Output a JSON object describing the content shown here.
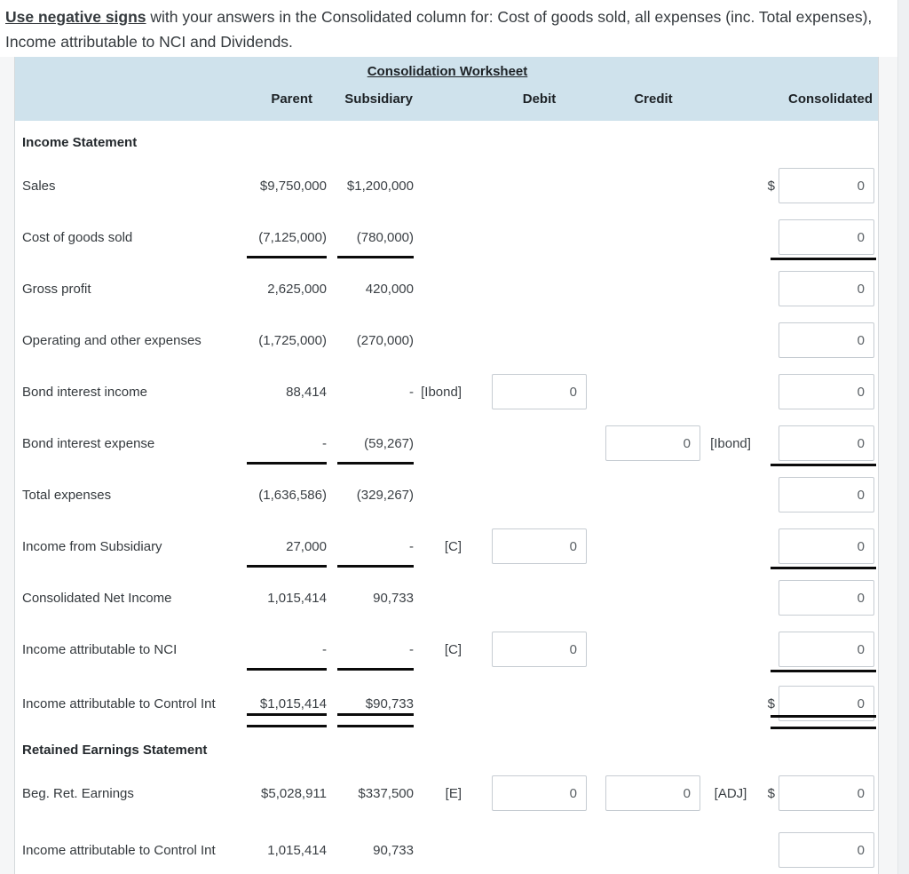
{
  "instruction": {
    "bold": "Use negative signs",
    "rest": " with your answers in the Consolidated column for: Cost of goods sold, all expenses (inc. Total expenses), Income attributable to NCI and Dividends."
  },
  "worksheet": {
    "title": "Consolidation Worksheet",
    "columns": {
      "parent": "Parent",
      "subsidiary": "Subsidiary",
      "debit": "Debit",
      "credit": "Credit",
      "consolidated": "Consolidated"
    },
    "rows": [
      {
        "type": "section",
        "label": "Income Statement"
      },
      {
        "type": "data",
        "label": "Sales",
        "parent": "$9,750,000",
        "subsidiary": "$1,200,000",
        "dollar": "$",
        "consolidated": "0"
      },
      {
        "type": "data",
        "label": "Cost of goods sold",
        "parent": "(7,125,000)",
        "subsidiary": "(780,000)",
        "parent_rule": "single",
        "sub_rule": "single",
        "consolidated": "0",
        "cons_rule": "single"
      },
      {
        "type": "data",
        "label": "Gross profit",
        "parent": "2,625,000",
        "subsidiary": "420,000",
        "consolidated": "0"
      },
      {
        "type": "data",
        "label": "Operating and other expenses",
        "parent": "(1,725,000)",
        "subsidiary": "(270,000)",
        "consolidated": "0"
      },
      {
        "type": "data",
        "label": "Bond interest income",
        "parent": "88,414",
        "subsidiary": "-",
        "pre": "[Ibond]",
        "debit": "0",
        "consolidated": "0"
      },
      {
        "type": "data",
        "label": "Bond interest expense",
        "parent": "-",
        "subsidiary": "(59,267)",
        "parent_rule": "single",
        "sub_rule": "single",
        "credit": "0",
        "post": "[Ibond]",
        "consolidated": "0",
        "cons_rule": "single"
      },
      {
        "type": "data",
        "label": "Total expenses",
        "parent": "(1,636,586)",
        "subsidiary": "(329,267)",
        "consolidated": "0"
      },
      {
        "type": "data",
        "label": "Income from Subsidiary",
        "parent": "27,000",
        "subsidiary": "-",
        "parent_rule": "single",
        "sub_rule": "single",
        "pre": "[C]",
        "debit": "0",
        "consolidated": "0",
        "cons_rule": "single"
      },
      {
        "type": "data",
        "label": "Consolidated Net Income",
        "parent": "1,015,414",
        "subsidiary": "90,733",
        "consolidated": "0"
      },
      {
        "type": "data",
        "label": "Income attributable to NCI",
        "parent": "-",
        "subsidiary": "-",
        "parent_rule": "single",
        "sub_rule": "single",
        "pre": "[C]",
        "debit": "0",
        "consolidated": "0",
        "cons_rule": "single"
      },
      {
        "type": "data",
        "label": "Income attributable to Control Int",
        "parent": "$1,015,414",
        "subsidiary": "$90,733",
        "parent_rule": "double",
        "sub_rule": "double",
        "dollar": "$",
        "consolidated": "0",
        "cons_rule": "double",
        "tall": true
      },
      {
        "type": "section",
        "label": "Retained Earnings Statement"
      },
      {
        "type": "data",
        "label": "Beg. Ret. Earnings",
        "parent": "$5,028,911",
        "subsidiary": "$337,500",
        "pre": "[E]",
        "debit": "0",
        "credit": "0",
        "post": "[ADJ]",
        "dollar": "$",
        "consolidated": "0"
      },
      {
        "type": "data",
        "label": "Income attributable to Control Int",
        "parent": "1,015,414",
        "subsidiary": "90,733",
        "consolidated": "0",
        "tall": true,
        "last": true
      }
    ]
  },
  "colors": {
    "header_bg": "#cfe2ec",
    "page_band_bg": "#f5f6f7",
    "rule_color": "#0b0b0b",
    "input_border": "#c6ccd2"
  }
}
